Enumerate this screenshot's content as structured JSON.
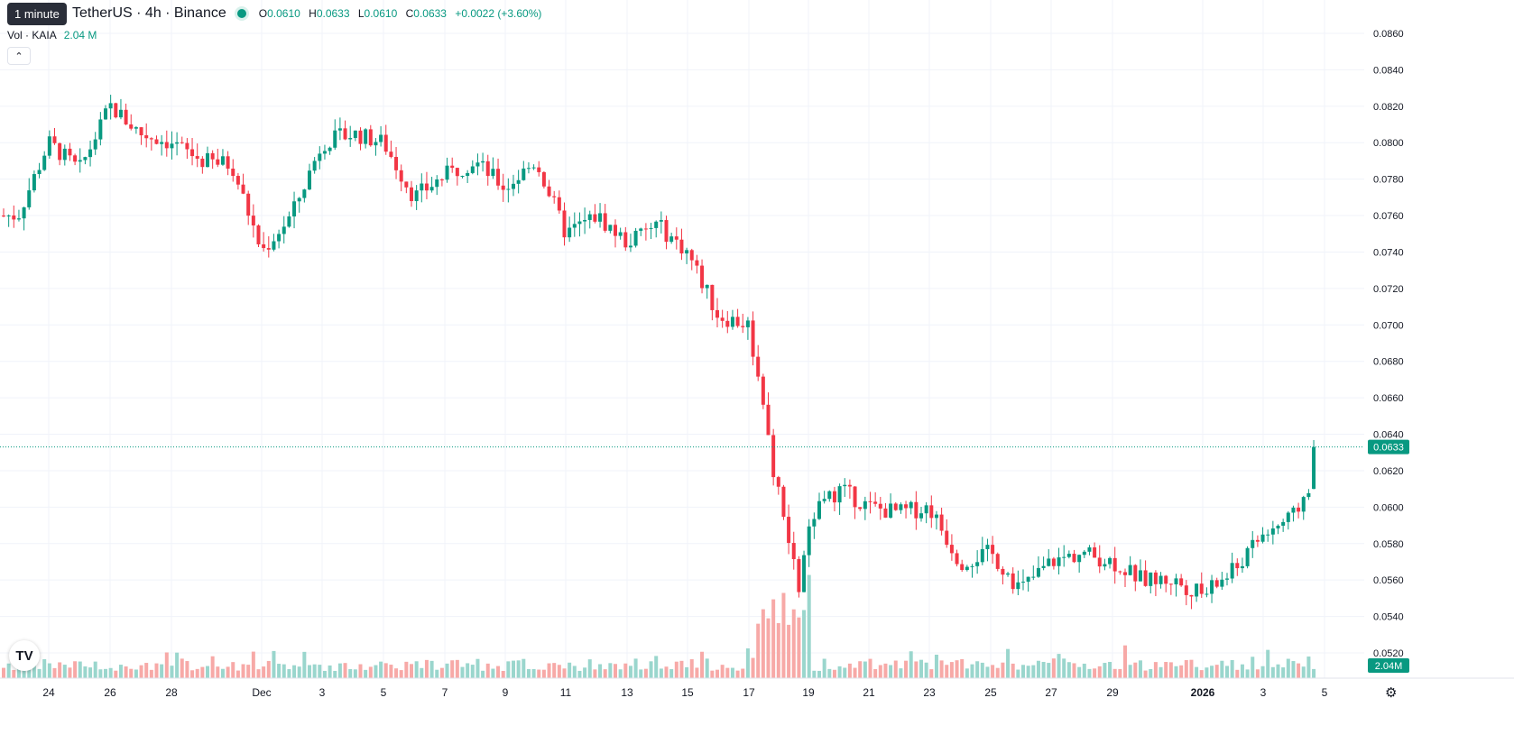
{
  "tooltip": "1 minute",
  "header": {
    "symbol": "TetherUS · 4h · Binance",
    "open_label": "O",
    "open": "0.0610",
    "high_label": "H",
    "high": "0.0633",
    "low_label": "L",
    "low": "0.0610",
    "close_label": "C",
    "close": "0.0633",
    "change": "+0.0022 (+3.60%)"
  },
  "volume_legend": {
    "label": "Vol · KAIA",
    "value": "2.04 M"
  },
  "colors": {
    "up": "#089981",
    "down": "#f23645",
    "vol_up": "#9ad6cd",
    "vol_down": "#f7a9a7",
    "grid": "#f0f3fa",
    "axis_text": "#131722"
  },
  "icons": {
    "collapse": "chevron-up-icon",
    "logo": "tradingview-logo",
    "settings": "gear-icon"
  },
  "chart_data": {
    "type": "candlestick",
    "interval": "4h",
    "y_ticks": [
      "0.0860",
      "0.0840",
      "0.0820",
      "0.0800",
      "0.0780",
      "0.0760",
      "0.0740",
      "0.0720",
      "0.0700",
      "0.0680",
      "0.0660",
      "0.0640",
      "0.0620",
      "0.0600",
      "0.0580",
      "0.0560",
      "0.0540",
      "0.0520"
    ],
    "ylim": [
      0.0514,
      0.0868
    ],
    "x_ticks": [
      "24",
      "26",
      "28",
      "Dec",
      "3",
      "5",
      "7",
      "9",
      "11",
      "13",
      "15",
      "17",
      "19",
      "21",
      "23",
      "25",
      "27",
      "29",
      "2026",
      "3",
      "5"
    ],
    "last_price": "0.0633",
    "last_volume": "2.04M",
    "close_path": [
      {
        "day": "Nov 23",
        "price": 0.076
      },
      {
        "day": "Nov 24",
        "price": 0.08
      },
      {
        "day": "Nov 25",
        "price": 0.0785
      },
      {
        "day": "Nov 26",
        "price": 0.082
      },
      {
        "day": "Nov 27",
        "price": 0.0805
      },
      {
        "day": "Nov 28",
        "price": 0.08
      },
      {
        "day": "Nov 29",
        "price": 0.079
      },
      {
        "day": "Nov 30",
        "price": 0.0788
      },
      {
        "day": "Dec 1",
        "price": 0.074
      },
      {
        "day": "Dec 2",
        "price": 0.076
      },
      {
        "day": "Dec 3",
        "price": 0.08
      },
      {
        "day": "Dec 4",
        "price": 0.0805
      },
      {
        "day": "Dec 5",
        "price": 0.08
      },
      {
        "day": "Dec 6",
        "price": 0.077
      },
      {
        "day": "Dec 7",
        "price": 0.0782
      },
      {
        "day": "Dec 8",
        "price": 0.079
      },
      {
        "day": "Dec 9",
        "price": 0.0775
      },
      {
        "day": "Dec 10",
        "price": 0.079
      },
      {
        "day": "Dec 11",
        "price": 0.075
      },
      {
        "day": "Dec 12",
        "price": 0.076
      },
      {
        "day": "Dec 13",
        "price": 0.0745
      },
      {
        "day": "Dec 14",
        "price": 0.0755
      },
      {
        "day": "Dec 15",
        "price": 0.074
      },
      {
        "day": "Dec 16",
        "price": 0.0705
      },
      {
        "day": "Dec 17",
        "price": 0.07
      },
      {
        "day": "Dec 18",
        "price": 0.0625
      },
      {
        "day": "Dec 18.5",
        "price": 0.0555
      },
      {
        "day": "Dec 19",
        "price": 0.0595
      },
      {
        "day": "Dec 20",
        "price": 0.061
      },
      {
        "day": "Dec 21",
        "price": 0.06
      },
      {
        "day": "Dec 22",
        "price": 0.0597
      },
      {
        "day": "Dec 23",
        "price": 0.06
      },
      {
        "day": "Dec 24",
        "price": 0.057
      },
      {
        "day": "Dec 25",
        "price": 0.0575
      },
      {
        "day": "Dec 26",
        "price": 0.0555
      },
      {
        "day": "Dec 27",
        "price": 0.057
      },
      {
        "day": "Dec 28",
        "price": 0.0575
      },
      {
        "day": "Dec 29",
        "price": 0.057
      },
      {
        "day": "Dec 30",
        "price": 0.056
      },
      {
        "day": "Dec 31",
        "price": 0.056
      },
      {
        "day": "Jan 1",
        "price": 0.0552
      },
      {
        "day": "Jan 2",
        "price": 0.0565
      },
      {
        "day": "Jan 3",
        "price": 0.0585
      },
      {
        "day": "Jan 4",
        "price": 0.0595
      },
      {
        "day": "Jan 4.5",
        "price": 0.061
      },
      {
        "day": "Jan 5",
        "price": 0.0633
      }
    ]
  }
}
